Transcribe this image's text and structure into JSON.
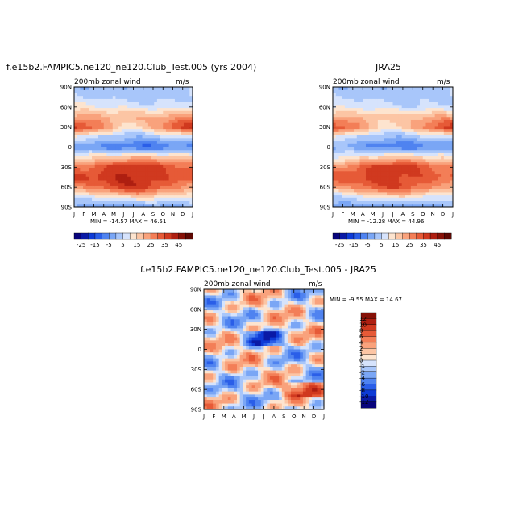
{
  "chart_data": [
    {
      "type": "heatmap",
      "title": "f.e15b2.FAMPIC5.ne120_ne120.Club_Test.005 (yrs 2004)",
      "subtitle": "200mb zonal wind",
      "units": "m/s",
      "stats": "MIN = -14.57 MAX = 46.51",
      "x_ticks": [
        "J",
        "F",
        "M",
        "A",
        "M",
        "J",
        "J",
        "A",
        "S",
        "O",
        "N",
        "D",
        "J"
      ],
      "y_ticks": [
        "90N",
        "60N",
        "30N",
        "0",
        "30S",
        "60S",
        "90S"
      ],
      "ylim": [
        -90,
        90
      ],
      "colorbar_levels": [
        -30,
        -25,
        -20,
        -15,
        -10,
        -5,
        0,
        5,
        10,
        15,
        20,
        25,
        30,
        35,
        40,
        45,
        50
      ],
      "colorbar_labels": [
        "-25",
        "-15",
        "-5",
        "5",
        "15",
        "25",
        "35",
        "45"
      ],
      "colorbar_colors": [
        "#08047c",
        "#0a1aa6",
        "#0e3bd6",
        "#2a5ee8",
        "#4f83f0",
        "#7aa6f5",
        "#a8c6fa",
        "#d6e3fc",
        "#fde4cf",
        "#fcc5a4",
        "#f9a27c",
        "#f37e57",
        "#e65a37",
        "#d0391f",
        "#ae1f11",
        "#861107",
        "#5e0803"
      ],
      "profile": {
        "lat": [
          -90,
          -75,
          -60,
          -45,
          -30,
          -15,
          0,
          15,
          30,
          45,
          60,
          75,
          90
        ],
        "jan": [
          -2,
          8,
          24,
          34,
          28,
          14,
          -4,
          6,
          38,
          24,
          10,
          4,
          2
        ],
        "jul": [
          -4,
          14,
          38,
          40,
          42,
          18,
          -12,
          2,
          14,
          18,
          8,
          4,
          2
        ]
      }
    },
    {
      "type": "heatmap",
      "title": "JRA25",
      "subtitle": "200mb zonal wind",
      "units": "m/s",
      "stats": "MIN = -12.28 MAX = 44.96",
      "x_ticks": [
        "J",
        "F",
        "M",
        "A",
        "M",
        "J",
        "J",
        "A",
        "S",
        "O",
        "N",
        "D",
        "J"
      ],
      "y_ticks": [
        "90N",
        "60N",
        "30N",
        "0",
        "30S",
        "60S",
        "90S"
      ],
      "ylim": [
        -90,
        90
      ],
      "colorbar_levels": [
        -30,
        -25,
        -20,
        -15,
        -10,
        -5,
        0,
        5,
        10,
        15,
        20,
        25,
        30,
        35,
        40,
        45,
        50
      ],
      "colorbar_labels": [
        "-25",
        "-15",
        "-5",
        "5",
        "15",
        "25",
        "35",
        "45"
      ],
      "colorbar_colors": [
        "#08047c",
        "#0a1aa6",
        "#0e3bd6",
        "#2a5ee8",
        "#4f83f0",
        "#7aa6f5",
        "#a8c6fa",
        "#d6e3fc",
        "#fde4cf",
        "#fcc5a4",
        "#f9a27c",
        "#f37e57",
        "#e65a37",
        "#d0391f",
        "#ae1f11",
        "#861107",
        "#5e0803"
      ],
      "profile": {
        "lat": [
          -90,
          -75,
          -60,
          -45,
          -30,
          -15,
          0,
          15,
          30,
          45,
          60,
          75,
          90
        ],
        "jan": [
          -2,
          6,
          22,
          32,
          26,
          12,
          -2,
          6,
          36,
          22,
          8,
          4,
          2
        ],
        "jul": [
          -4,
          12,
          34,
          38,
          40,
          16,
          -10,
          2,
          14,
          16,
          6,
          4,
          2
        ]
      }
    },
    {
      "type": "heatmap",
      "title": "f.e15b2.FAMPIC5.ne120_ne120.Club_Test.005 - JRA25",
      "subtitle": "200mb zonal wind",
      "units": "m/s",
      "stats": "MIN = -9.55 MAX = 14.67",
      "x_ticks": [
        "J",
        "F",
        "M",
        "A",
        "M",
        "J",
        "J",
        "A",
        "S",
        "O",
        "N",
        "D",
        "J"
      ],
      "y_ticks": [
        "90N",
        "60N",
        "30N",
        "0",
        "30S",
        "60S",
        "90S"
      ],
      "ylim": [
        -90,
        90
      ],
      "colorbar_levels": [
        -14,
        -12,
        -10,
        -8,
        -6,
        -4,
        -2,
        -1,
        0,
        1,
        2,
        4,
        6,
        8,
        10,
        12,
        14
      ],
      "colorbar_labels": [
        "12",
        "10",
        "8",
        "6",
        "4",
        "2",
        "1",
        "0",
        "-1",
        "-2",
        "-4",
        "-6",
        "-8",
        "-10",
        "-12"
      ],
      "colorbar_colors": [
        "#08047c",
        "#0a1aa6",
        "#0e3bd6",
        "#2a5ee8",
        "#4f83f0",
        "#7aa6f5",
        "#a8c6fa",
        "#d6e3fc",
        "#fde4cf",
        "#fcc5a4",
        "#f9a27c",
        "#f37e57",
        "#e65a37",
        "#d0391f",
        "#ae1f11",
        "#861107"
      ]
    }
  ]
}
